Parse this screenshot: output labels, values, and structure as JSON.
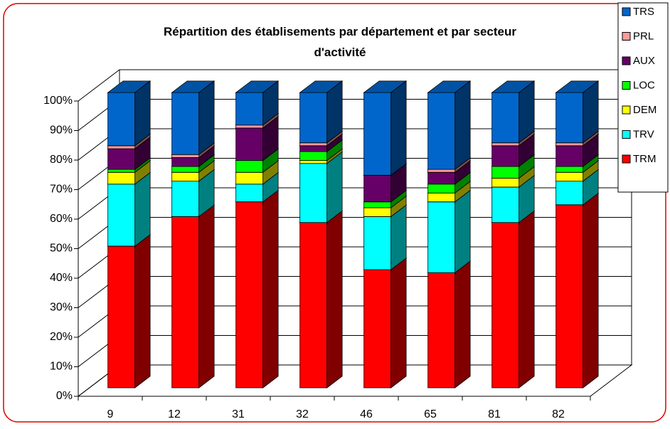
{
  "chart_data": {
    "type": "bar",
    "stacked": true,
    "three_d": true,
    "title": "Répartition des établisements par département et par secteur d'activité",
    "categories": [
      "9",
      "12",
      "31",
      "32",
      "46",
      "65",
      "81",
      "82"
    ],
    "series": [
      {
        "name": "TRM",
        "color": "#ff0000",
        "values": [
          48,
          58,
          63,
          56,
          40,
          39,
          56,
          62
        ]
      },
      {
        "name": "TRV",
        "color": "#00ffff",
        "values": [
          21,
          12,
          6,
          20,
          18,
          24,
          12,
          8
        ]
      },
      {
        "name": "DEM",
        "color": "#ffff00",
        "values": [
          4,
          3,
          4,
          1,
          3,
          3,
          3,
          3
        ]
      },
      {
        "name": "LOC",
        "color": "#00ff00",
        "values": [
          1,
          2,
          4,
          3,
          2,
          3,
          4,
          2
        ]
      },
      {
        "name": "AUX",
        "color": "#660066",
        "values": [
          7,
          3,
          11,
          2,
          9,
          4,
          7,
          7
        ]
      },
      {
        "name": "PRL",
        "color": "#ff9999",
        "values": [
          1,
          1,
          1,
          1,
          0,
          1,
          1,
          1
        ]
      },
      {
        "name": "TRS",
        "color": "#0066cc",
        "values": [
          18,
          21,
          11,
          17,
          28,
          26,
          17,
          17
        ]
      }
    ],
    "ylim": [
      0,
      100
    ],
    "yticks": [
      {
        "value": 0,
        "label": "0%"
      },
      {
        "value": 10,
        "label": "10%"
      },
      {
        "value": 20,
        "label": "20%"
      },
      {
        "value": 30,
        "label": "30%"
      },
      {
        "value": 40,
        "label": "40%"
      },
      {
        "value": 50,
        "label": "50%"
      },
      {
        "value": 60,
        "label": "60%"
      },
      {
        "value": 70,
        "label": "70%"
      },
      {
        "value": 80,
        "label": "80%"
      },
      {
        "value": 90,
        "label": "90%"
      },
      {
        "value": 100,
        "label": "100%"
      }
    ],
    "grid": true,
    "legend": "right"
  }
}
